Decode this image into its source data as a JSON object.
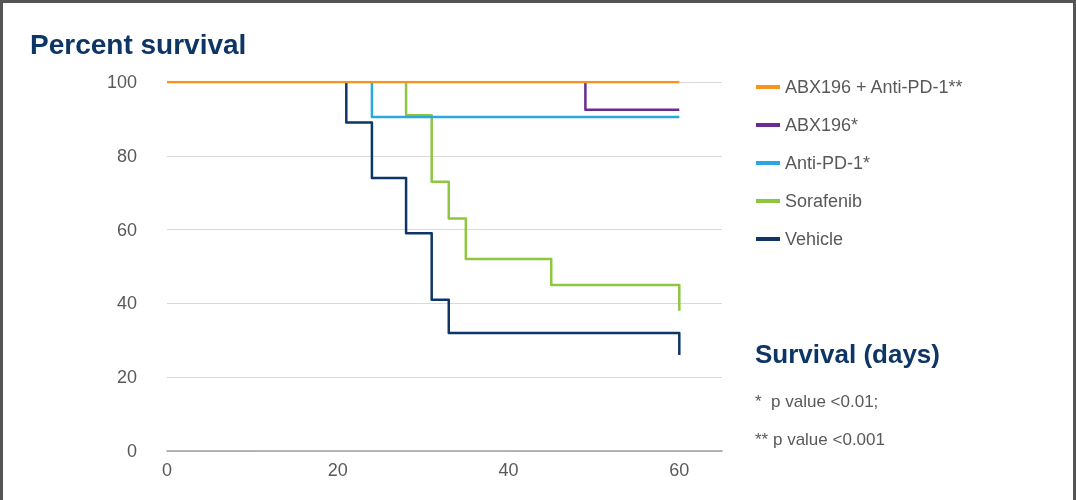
{
  "chart_data": {
    "type": "step",
    "title": "Percent survival",
    "xlabel": "Survival (days)",
    "annotations": [
      "*  p value <0.01;",
      "** p value <0.001"
    ],
    "series": [
      {
        "name": "ABX196 + Anti-PD-1**",
        "color": "#f7941d",
        "x": [
          0,
          60
        ],
        "values": [
          100,
          100
        ]
      },
      {
        "name": "ABX196*",
        "color": "#6a2c91",
        "x": [
          49,
          49,
          60
        ],
        "values": [
          100,
          92.5,
          92.5
        ]
      },
      {
        "name": "Anti-PD-1*",
        "color": "#29a8e0",
        "x": [
          24,
          24,
          60
        ],
        "values": [
          100,
          90.5,
          90.5
        ]
      },
      {
        "name": "Sorafenib",
        "color": "#8dc63f",
        "x": [
          28,
          28,
          31,
          33,
          35,
          45,
          60
        ],
        "values": [
          100,
          91,
          73,
          63,
          52,
          45,
          38
        ]
      },
      {
        "name": "Vehicle",
        "color": "#0d3566",
        "x": [
          21,
          21,
          24,
          28,
          31,
          33,
          60
        ],
        "values": [
          100,
          89,
          74,
          59,
          41,
          32,
          26
        ]
      }
    ],
    "xlim": [
      0,
      65
    ],
    "xticks": [
      0,
      20,
      40,
      60
    ],
    "ylim": [
      0,
      100
    ],
    "yticks": [
      0,
      20,
      40,
      60,
      80,
      100
    ],
    "grid": "y",
    "legend": "right",
    "marker": "none",
    "line_style": "solid"
  }
}
